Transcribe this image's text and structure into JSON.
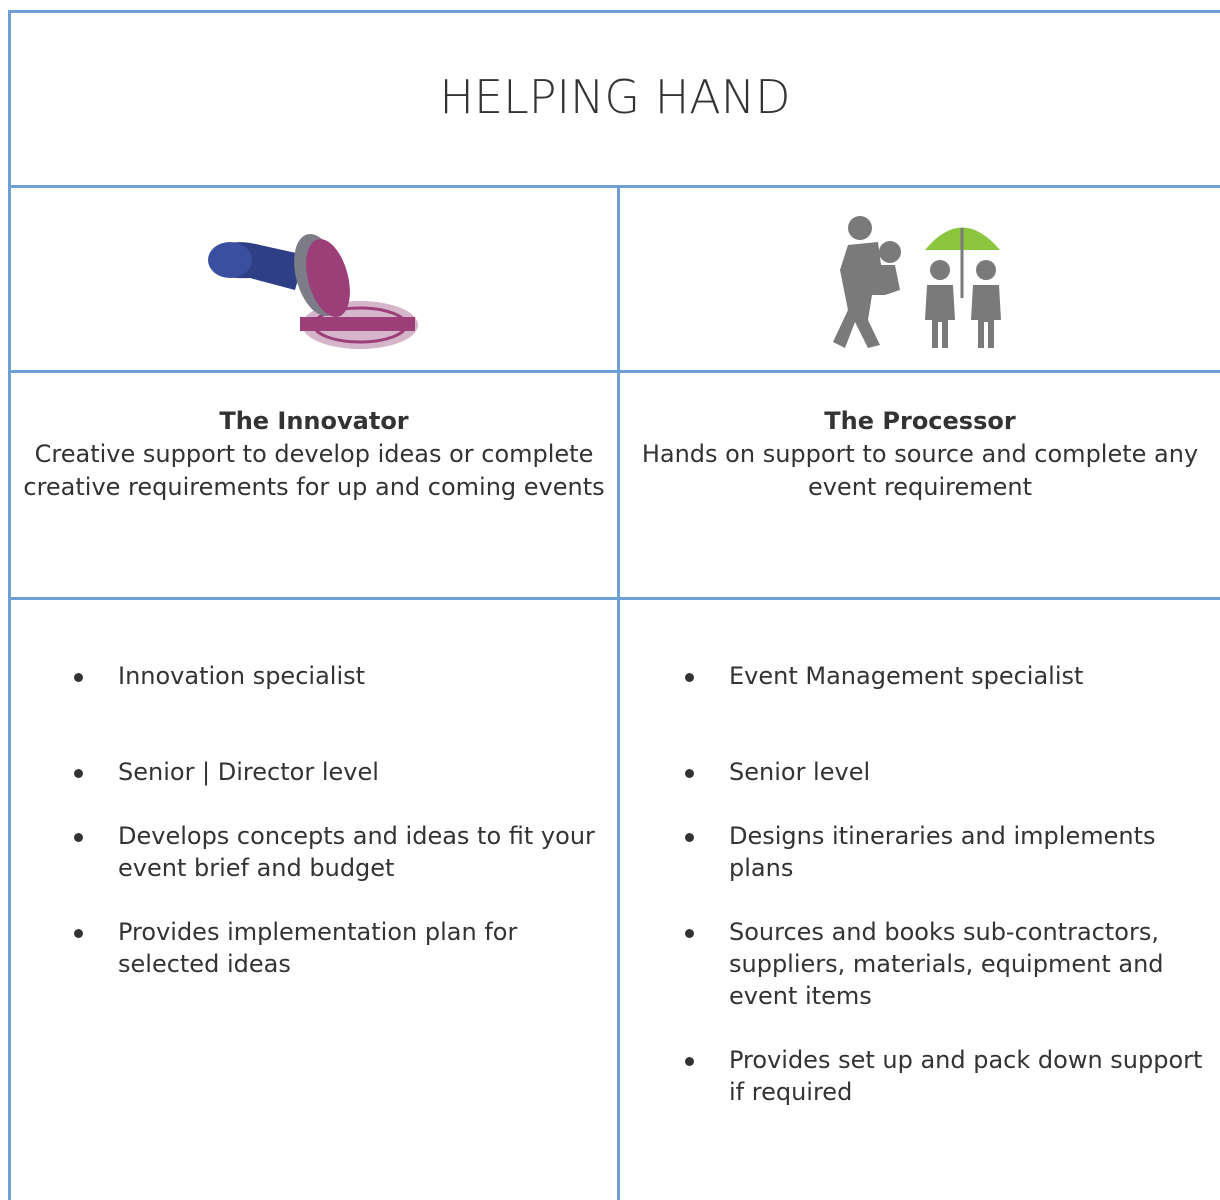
{
  "header": {
    "title": "HELPING HAND"
  },
  "columns": [
    {
      "heading": "The Innovator",
      "description": "Creative support to develop ideas or complete creative requirements for up and coming events",
      "items": [
        "Innovation specialist",
        "Senior | Director level",
        "Develops concepts and ideas to fit your event brief and budget",
        "Provides implementation plan for selected ideas"
      ]
    },
    {
      "heading": "The Processor",
      "description": "Hands on support to source and complete any event requirement",
      "items": [
        "Event Management specialist",
        "Senior level",
        "Designs itineraries and implements plans",
        "Sources and books sub-contractors, suppliers, materials, equipment and event items",
        "Provides set up and pack down support if required"
      ]
    }
  ]
}
